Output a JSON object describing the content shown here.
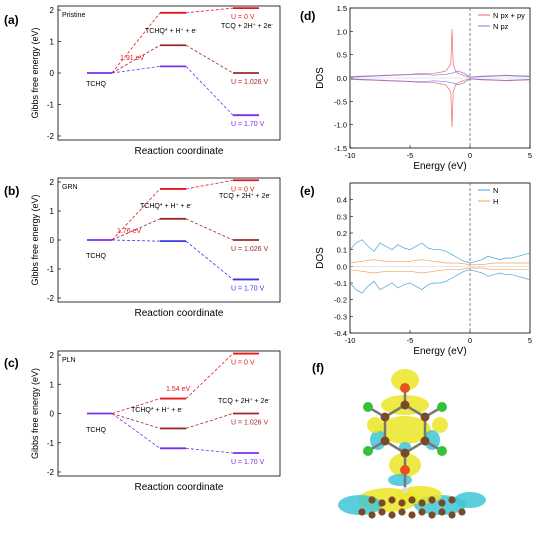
{
  "colors": {
    "red": "#e8141c",
    "darkred": "#a0282a",
    "purple": "#7a2ff0",
    "blue": "#3b36e6",
    "gray": "#808080",
    "dos_red": "#f06a6a",
    "dos_blue": "#7c7ce8",
    "dos_N": "#41a8e0",
    "dos_H": "#f3a25a",
    "orb_yellow": "#ece526",
    "orb_cyan": "#3ec5d6",
    "atom_brown": "#7a4a28",
    "atom_green": "#35c23a",
    "atom_orange": "#e0561e"
  },
  "chart_data": [
    {
      "panel": "(a)",
      "inset_label": "Pristine",
      "type": "line",
      "xlabel": "Reaction coordinate",
      "ylabel": "Gibbs free energy (eV)",
      "ylim": [
        -2,
        2
      ],
      "yticks": [
        "-2",
        "-1",
        "0",
        "1",
        "2"
      ],
      "species_labels": [
        "TCHQ",
        "TCHQ* + H⁺ + e⁻",
        "TCQ + 2H⁺ + 2e⁻"
      ],
      "barrier_label": "1.91 eV",
      "series": [
        {
          "name": "U = 0 V",
          "color": "red",
          "values": [
            0,
            1.91,
            2.06
          ]
        },
        {
          "name": "U = 1.026 V",
          "color": "darkred",
          "values": [
            0,
            0.88,
            0.0
          ]
        },
        {
          "name": "U = 1.70 V",
          "color": "purple",
          "values": [
            0,
            0.21,
            -1.34
          ]
        }
      ]
    },
    {
      "panel": "(b)",
      "inset_label": "GRN",
      "type": "line",
      "xlabel": "Reaction coordinate",
      "ylabel": "Gibbs free energy (eV)",
      "ylim": [
        -2,
        2
      ],
      "yticks": [
        "-2",
        "-1",
        "0",
        "1",
        "2"
      ],
      "species_labels": [
        "TCHQ",
        "TCHQ* + H⁺ + e⁻",
        "TCQ + 2H⁺ + 2e⁻"
      ],
      "barrier_label": "1.76 eV",
      "series": [
        {
          "name": "U = 0 V",
          "color": "red",
          "values": [
            0,
            1.76,
            2.06
          ]
        },
        {
          "name": "U = 1.026 V",
          "color": "darkred",
          "values": [
            0,
            0.73,
            0.0
          ]
        },
        {
          "name": "U = 1.70 V",
          "color": "blue",
          "values": [
            0,
            -0.04,
            -1.36
          ]
        }
      ]
    },
    {
      "panel": "(c)",
      "inset_label": "PLN",
      "type": "line",
      "xlabel": "Reaction coordinate",
      "ylabel": "Gibbs free energy (eV)",
      "ylim": [
        -2,
        2
      ],
      "yticks": [
        "-2",
        "-1",
        "0",
        "1",
        "2"
      ],
      "species_labels": [
        "TCHQ",
        "TCHQ* + H⁺ + e⁻",
        "TCQ + 2H⁺ + 2e⁻"
      ],
      "barrier_label": "1.54 eV",
      "series": [
        {
          "name": "U = 0 V",
          "color": "red",
          "values": [
            0,
            0.51,
            2.05
          ]
        },
        {
          "name": "U = 1.026 V",
          "color": "darkred",
          "values": [
            0,
            -0.51,
            0.0
          ]
        },
        {
          "name": "U = 1.70 V",
          "color": "purple",
          "values": [
            0,
            -1.19,
            -1.35
          ]
        }
      ]
    },
    {
      "panel": "(d)",
      "type": "line",
      "xlabel": "Energy (eV)",
      "ylabel": "DOS",
      "xlim": [
        -10,
        5
      ],
      "ylim": [
        -1.5,
        1.5
      ],
      "xticks": [
        "-10",
        "-5",
        "0",
        "5"
      ],
      "yticks": [
        "-1.5",
        "-1.0",
        "-0.5",
        "0.0",
        "0.5",
        "1.0",
        "1.5"
      ],
      "legend": [
        {
          "label": "N px + py",
          "color": "dos_red"
        },
        {
          "label": "N pz",
          "color": "dos_blue"
        }
      ],
      "fermi_level": 0,
      "series": [
        {
          "name": "N px + py",
          "color": "dos_red",
          "x": [
            -10,
            -9,
            -8,
            -7,
            -6,
            -5,
            -4,
            -3,
            -2.5,
            -2,
            -1.6,
            -1.5,
            -1.4,
            -1.2,
            -1,
            -0.5,
            0,
            1,
            2,
            3,
            4,
            5
          ],
          "values": [
            0.03,
            0.04,
            0.05,
            0.06,
            0.07,
            0.08,
            0.1,
            0.1,
            0.12,
            0.15,
            0.3,
            1.05,
            0.3,
            0.15,
            0.1,
            0.05,
            0.02,
            0.04,
            0.05,
            0.06,
            0.05,
            0.04
          ]
        },
        {
          "name": "N pz",
          "color": "dos_blue",
          "x": [
            -10,
            -9,
            -8,
            -7,
            -6,
            -5,
            -4,
            -3,
            -2,
            -1.5,
            -1,
            -0.5,
            0,
            1,
            2,
            3,
            4,
            5
          ],
          "values": [
            0.02,
            0.03,
            0.04,
            0.05,
            0.06,
            0.07,
            0.08,
            0.06,
            0.08,
            0.1,
            0.15,
            0.1,
            0.02,
            0.03,
            0.04,
            0.05,
            0.04,
            0.03
          ]
        }
      ]
    },
    {
      "panel": "(e)",
      "type": "line",
      "xlabel": "Energy (eV)",
      "ylabel": "DOS",
      "xlim": [
        -10,
        5
      ],
      "ylim": [
        -0.4,
        0.5
      ],
      "xticks": [
        "-10",
        "-5",
        "0",
        "5"
      ],
      "yticks": [
        "-0.4",
        "-0.3",
        "-0.2",
        "-0.1",
        "0.0",
        "0.1",
        "0.2",
        "0.3",
        "0.4"
      ],
      "legend": [
        {
          "label": "N",
          "color": "dos_N"
        },
        {
          "label": "H",
          "color": "dos_H"
        }
      ],
      "fermi_level": 0,
      "series": [
        {
          "name": "N",
          "color": "dos_N",
          "x": [
            -10,
            -9.5,
            -9,
            -8.5,
            -8,
            -7.5,
            -7,
            -6.5,
            -6,
            -5.5,
            -5,
            -4.5,
            -4,
            -3.5,
            -3,
            -2.5,
            -2,
            -1.5,
            -1,
            -0.5,
            0,
            0.5,
            1,
            1.5,
            2,
            2.5,
            3,
            3.5,
            4,
            4.5,
            5
          ],
          "values": [
            0.1,
            0.14,
            0.16,
            0.12,
            0.09,
            0.14,
            0.12,
            0.1,
            0.13,
            0.11,
            0.1,
            0.12,
            0.14,
            0.11,
            0.1,
            0.1,
            0.09,
            0.07,
            0.05,
            0.03,
            0.02,
            0.03,
            0.04,
            0.06,
            0.05,
            0.04,
            0.05,
            0.05,
            0.06,
            0.07,
            0.08
          ]
        },
        {
          "name": "H",
          "color": "dos_H",
          "x": [
            -10,
            -9,
            -8,
            -7,
            -6,
            -5,
            -4,
            -3,
            -2,
            -1,
            0,
            1,
            2,
            3,
            4,
            5
          ],
          "values": [
            0.02,
            0.03,
            0.04,
            0.03,
            0.03,
            0.03,
            0.04,
            0.03,
            0.02,
            0.02,
            0.01,
            0.01,
            0.02,
            0.02,
            0.02,
            0.02
          ]
        }
      ]
    }
  ],
  "panel_f": {
    "panel": "(f)"
  }
}
